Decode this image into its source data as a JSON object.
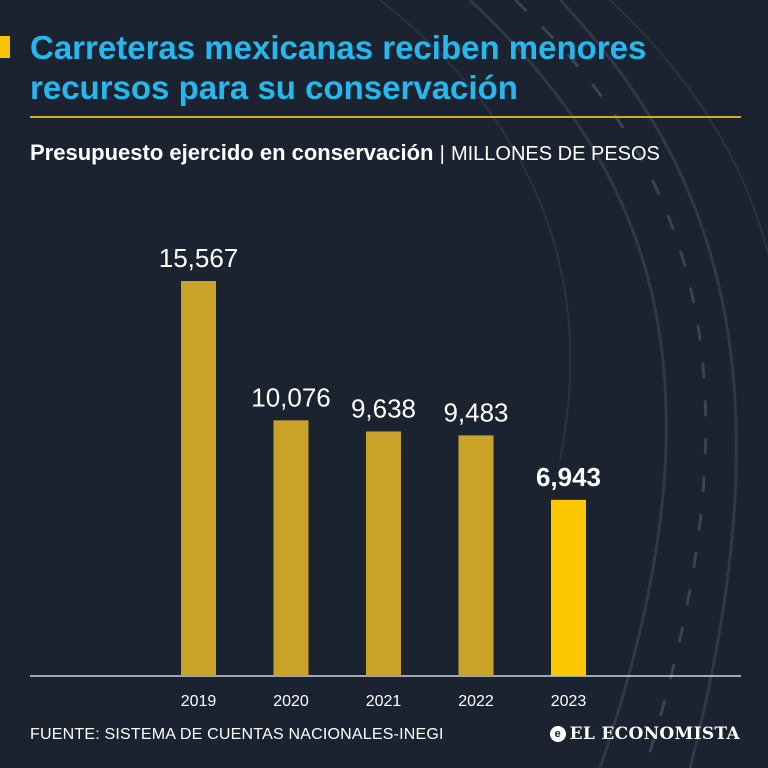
{
  "header": {
    "title": "Carreteras mexicanas reciben menores recursos para su conservación",
    "subtitle_main": "Presupuesto ejercido en conservación",
    "subtitle_separator": "|",
    "subtitle_unit": "MILLONES DE PESOS"
  },
  "footer": {
    "source": "FUENTE: SISTEMA DE CUENTAS NACIONALES-INEGI",
    "brand": "EL ECONOMISTA"
  },
  "colors": {
    "background": "#1b2230",
    "title": "#25b8ef",
    "bar": "#c9a227",
    "bar_highlight": "#fcc800",
    "rule": "#d4a92a"
  },
  "chart_data": {
    "type": "bar",
    "title": "Presupuesto ejercido en conservación",
    "ylabel": "MILLONES DE PESOS",
    "xlabel": "",
    "categories": [
      "2019",
      "2020",
      "2021",
      "2022",
      "2023"
    ],
    "values": [
      15567,
      10076,
      9638,
      9483,
      6943
    ],
    "value_labels": [
      "15,567",
      "10,076",
      "9,638",
      "9,483",
      "6,943"
    ],
    "highlight_index": 4,
    "ylim": [
      0,
      16000
    ],
    "grid": false
  }
}
